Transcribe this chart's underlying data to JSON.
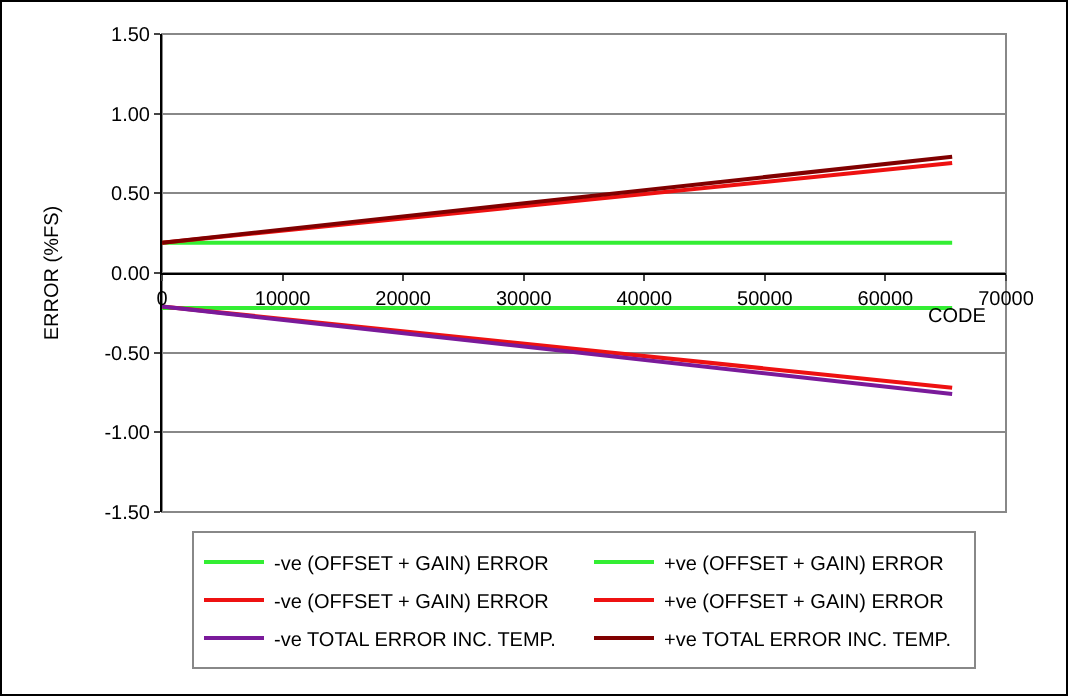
{
  "chart_data": {
    "type": "line",
    "xlabel": "CODE",
    "ylabel": "ERROR (%FS)",
    "xlim": [
      0,
      70000
    ],
    "xticks": [
      0,
      10000,
      20000,
      30000,
      40000,
      50000,
      60000,
      70000
    ],
    "ylim": [
      -1.5,
      1.5
    ],
    "yticks": [
      {
        "value": 1.5,
        "label": "1.50"
      },
      {
        "value": 1,
        "label": "1.00"
      },
      {
        "value": 0.5,
        "label": "0.50"
      },
      {
        "value": 0,
        "label": "0.00"
      },
      {
        "value": -0.5,
        "label": "-0.50"
      },
      {
        "value": -1,
        "label": "-1.00"
      },
      {
        "value": -1.5,
        "label": "-1.50"
      }
    ],
    "grid": "y",
    "legend": "bottom",
    "x": [
      0,
      65535
    ],
    "series": [
      {
        "name": "-ve (OFFSET + GAIN) ERROR",
        "color": "#33ee33",
        "values": [
          -0.22,
          -0.22
        ]
      },
      {
        "name": "+ve (OFFSET + GAIN) ERROR",
        "color": "#33ee33",
        "values": [
          0.19,
          0.19
        ]
      },
      {
        "name": "-ve (OFFSET + GAIN) ERROR",
        "color": "#ee1111",
        "values": [
          -0.21,
          -0.72
        ]
      },
      {
        "name": "+ve (OFFSET + GAIN) ERROR",
        "color": "#ee1111",
        "values": [
          0.19,
          0.69
        ]
      },
      {
        "name": "-ve TOTAL ERROR INC. TEMP.",
        "color": "#7a1a9a",
        "values": [
          -0.21,
          -0.76
        ]
      },
      {
        "name": "+ve TOTAL ERROR INC. TEMP.",
        "color": "#800000",
        "values": [
          0.19,
          0.73
        ]
      }
    ]
  }
}
